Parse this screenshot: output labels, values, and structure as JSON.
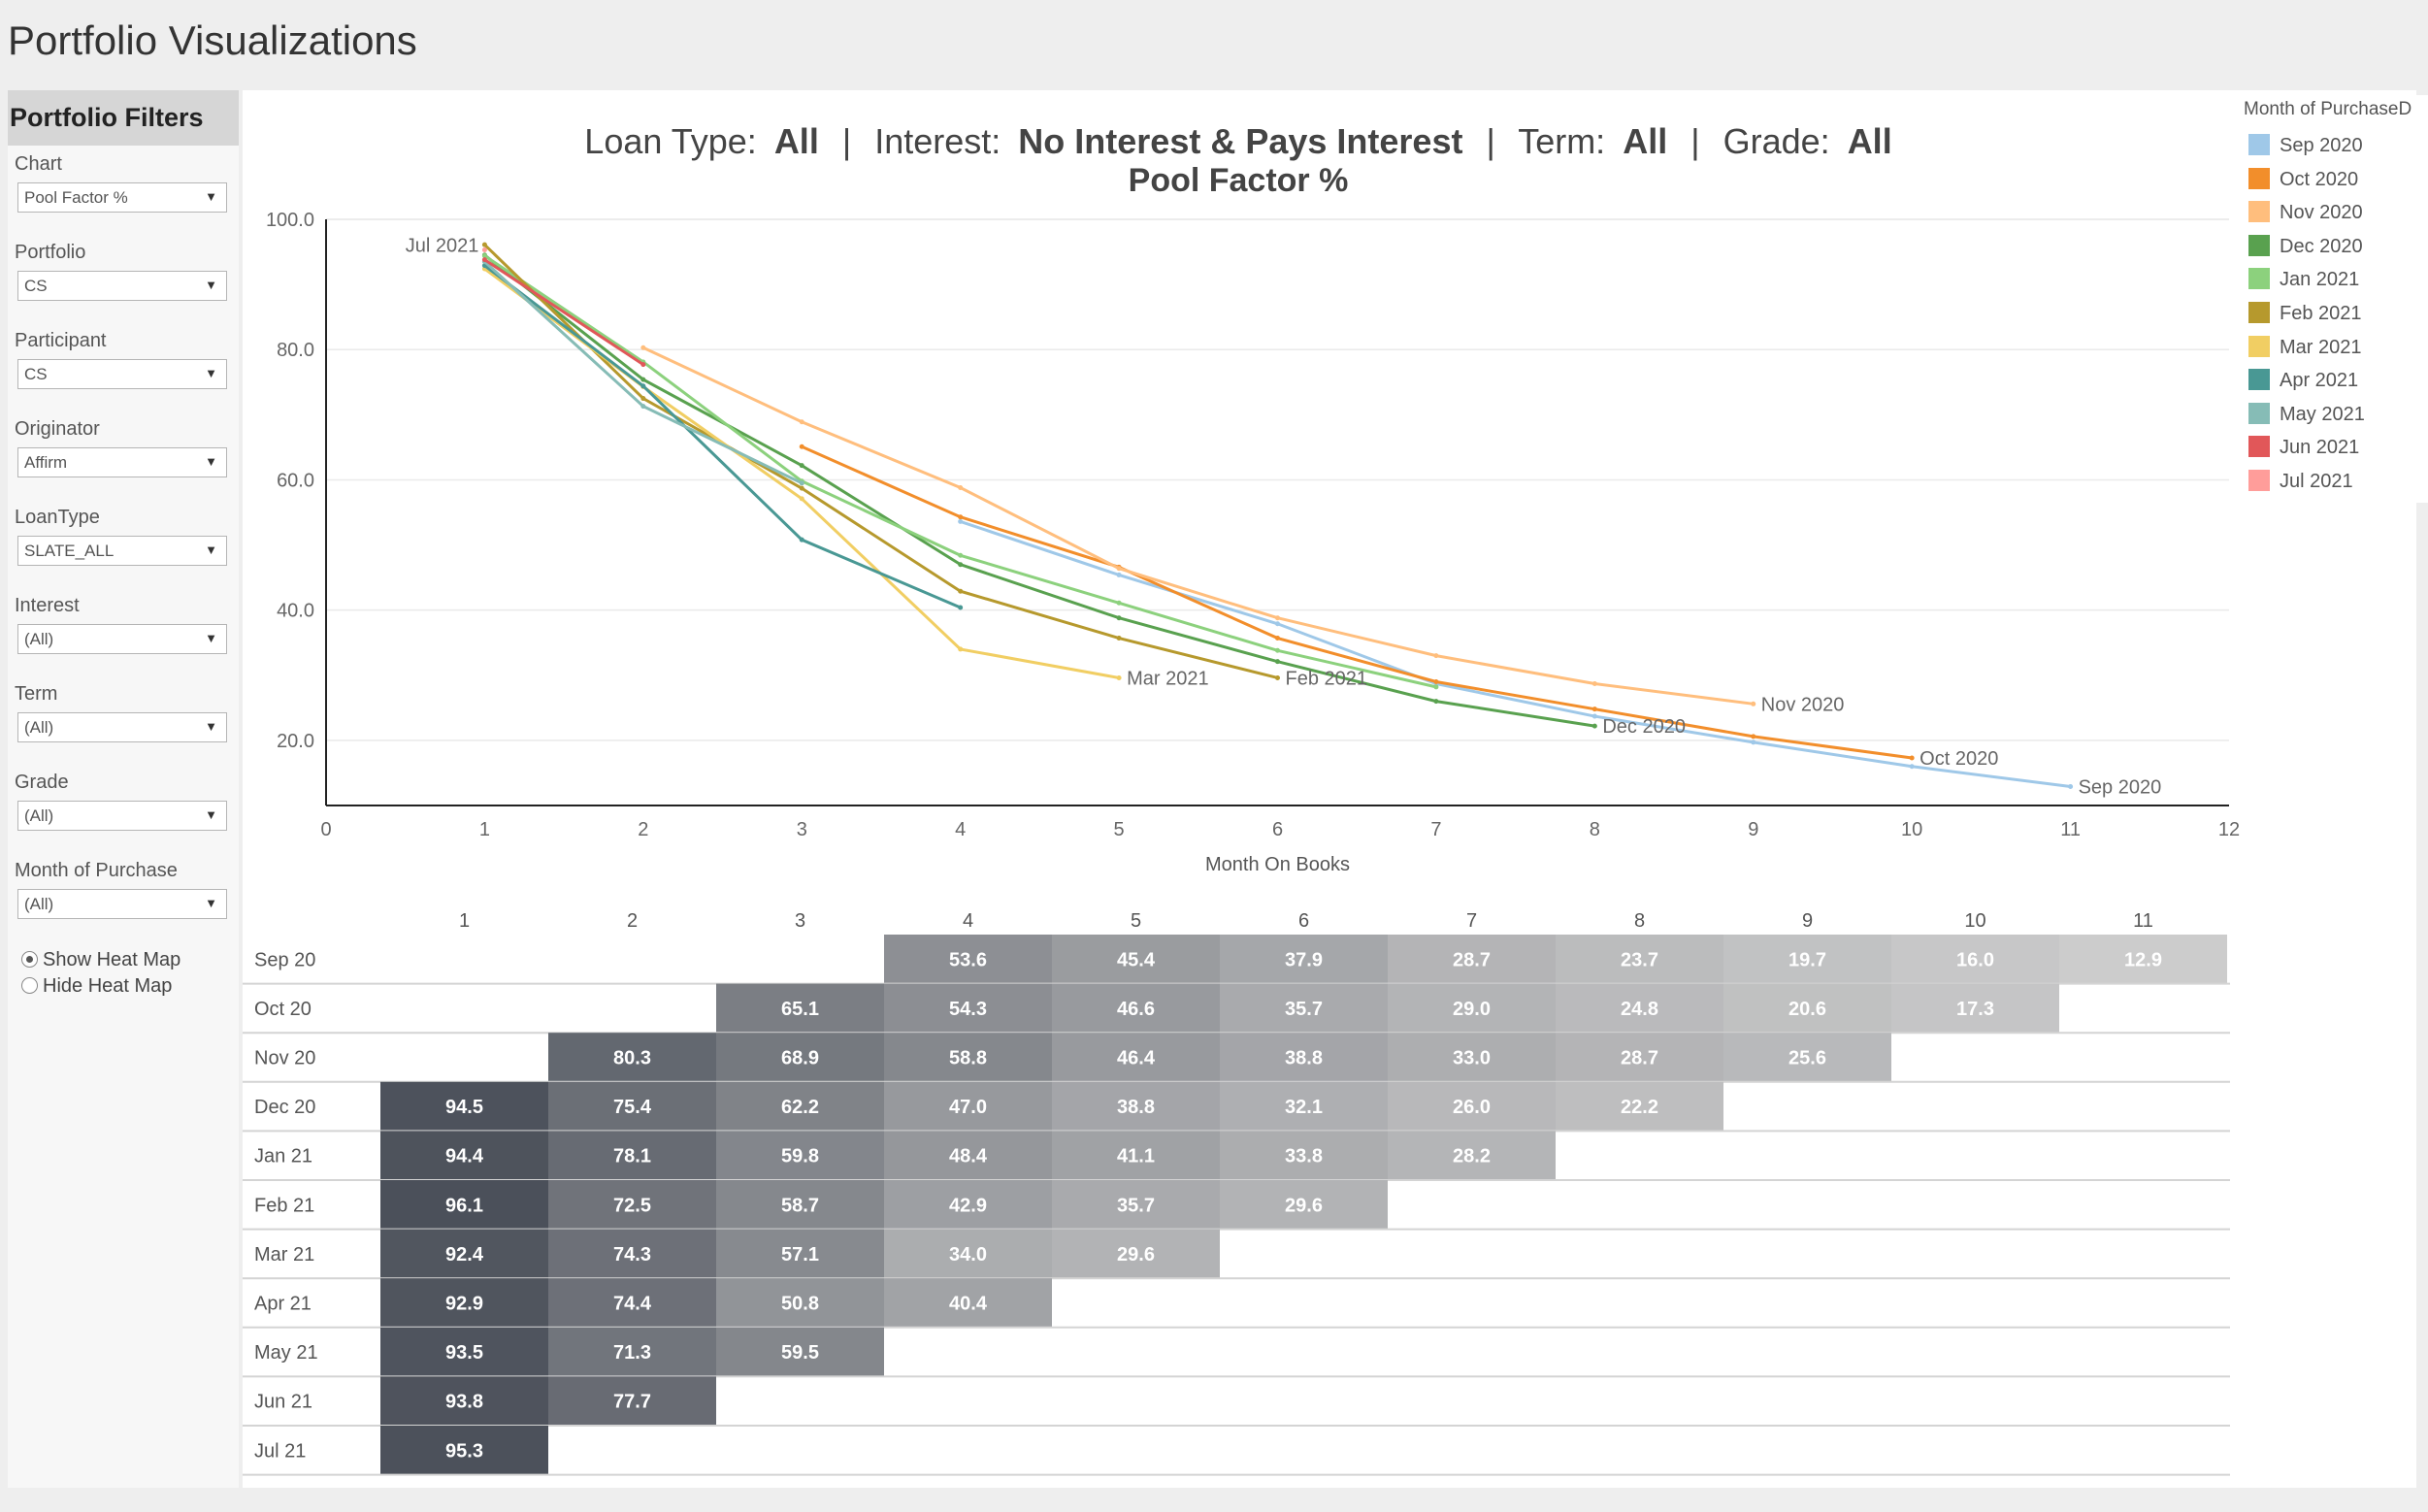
{
  "app": {
    "title": "Portfolio Visualizations"
  },
  "sidebar": {
    "header": "Portfolio Filters",
    "filters": [
      {
        "label": "Chart",
        "value": "Pool Factor %"
      },
      {
        "label": "Portfolio",
        "value": "CS"
      },
      {
        "label": "Participant",
        "value": "CS"
      },
      {
        "label": "Originator",
        "value": "Affirm"
      },
      {
        "label": "LoanType",
        "value": "SLATE_ALL"
      },
      {
        "label": "Interest",
        "value": "(All)"
      },
      {
        "label": "Term",
        "value": "(All)"
      },
      {
        "label": "Grade",
        "value": "(All)"
      },
      {
        "label": "Month of Purchase",
        "value": "(All)"
      }
    ],
    "heatmap_options": [
      {
        "label": "Show Heat Map",
        "selected": true
      },
      {
        "label": "Hide Heat Map",
        "selected": false
      }
    ]
  },
  "header": {
    "loan_type_label": "Loan Type:",
    "loan_type_value": "All",
    "interest_label": "Interest:",
    "interest_value": "No Interest & Pays Interest",
    "term_label": "Term:",
    "term_value": "All",
    "grade_label": "Grade:",
    "grade_value": "All",
    "separator": "|"
  },
  "legend": {
    "title": "Month of PurchaseD",
    "items": [
      {
        "label": "Sep 2020",
        "color": "#9fc8e8"
      },
      {
        "label": "Oct 2020",
        "color": "#f28e2b"
      },
      {
        "label": "Nov 2020",
        "color": "#ffbe7d"
      },
      {
        "label": "Dec 2020",
        "color": "#59a14f"
      },
      {
        "label": "Jan 2021",
        "color": "#8cd17d"
      },
      {
        "label": "Feb 2021",
        "color": "#b6992d"
      },
      {
        "label": "Mar 2021",
        "color": "#f1ce63"
      },
      {
        "label": "Apr 2021",
        "color": "#499894"
      },
      {
        "label": "May 2021",
        "color": "#86bcb6"
      },
      {
        "label": "Jun 2021",
        "color": "#e15759"
      },
      {
        "label": "Jul 2021",
        "color": "#ff9d9a"
      }
    ]
  },
  "chart_data": [
    {
      "type": "line",
      "title": "Pool Factor %",
      "xlabel": "Month On Books",
      "ylabel": "",
      "xlim": [
        0,
        12
      ],
      "ylim": [
        10,
        100
      ],
      "x_ticks": [
        0,
        1,
        2,
        3,
        4,
        5,
        6,
        7,
        8,
        9,
        10,
        11,
        12
      ],
      "y_ticks": [
        20,
        40,
        60,
        80,
        100
      ],
      "y_tick_labels": [
        "20.0",
        "40.0",
        "60.0",
        "80.0",
        "100.0"
      ],
      "grid": true,
      "legend": "right",
      "series": [
        {
          "name": "Sep 2020",
          "color": "#9fc8e8",
          "x": [
            4,
            5,
            6,
            7,
            8,
            9,
            10,
            11
          ],
          "values": [
            53.6,
            45.4,
            37.9,
            28.7,
            23.7,
            19.7,
            16.0,
            12.9
          ],
          "end_label": "Sep 2020"
        },
        {
          "name": "Oct 2020",
          "color": "#f28e2b",
          "x": [
            3,
            4,
            5,
            6,
            7,
            8,
            9,
            10
          ],
          "values": [
            65.1,
            54.3,
            46.6,
            35.7,
            29.0,
            24.8,
            20.6,
            17.3
          ],
          "end_label": "Oct 2020"
        },
        {
          "name": "Nov 2020",
          "color": "#ffbe7d",
          "x": [
            2,
            3,
            4,
            5,
            6,
            7,
            8,
            9
          ],
          "values": [
            80.3,
            68.9,
            58.8,
            46.4,
            38.8,
            33.0,
            28.7,
            25.6
          ],
          "end_label": "Nov 2020"
        },
        {
          "name": "Dec 2020",
          "color": "#59a14f",
          "x": [
            1,
            2,
            3,
            4,
            5,
            6,
            7,
            8
          ],
          "values": [
            94.5,
            75.4,
            62.2,
            47.0,
            38.8,
            32.1,
            26.0,
            22.2
          ],
          "end_label": "Dec 2020"
        },
        {
          "name": "Jan 2021",
          "color": "#8cd17d",
          "x": [
            1,
            2,
            3,
            4,
            5,
            6,
            7
          ],
          "values": [
            94.4,
            78.1,
            59.8,
            48.4,
            41.1,
            33.8,
            28.2
          ],
          "end_label": ""
        },
        {
          "name": "Feb 2021",
          "color": "#b6992d",
          "x": [
            1,
            2,
            3,
            4,
            5,
            6
          ],
          "values": [
            96.1,
            72.5,
            58.7,
            42.9,
            35.7,
            29.6
          ],
          "end_label": "Feb 2021"
        },
        {
          "name": "Mar 2021",
          "color": "#f1ce63",
          "x": [
            1,
            2,
            3,
            4,
            5
          ],
          "values": [
            92.4,
            74.3,
            57.1,
            34.0,
            29.6
          ],
          "end_label": "Mar 2021"
        },
        {
          "name": "Apr 2021",
          "color": "#499894",
          "x": [
            1,
            2,
            3,
            4
          ],
          "values": [
            92.9,
            74.4,
            50.8,
            40.4
          ],
          "end_label": ""
        },
        {
          "name": "May 2021",
          "color": "#86bcb6",
          "x": [
            1,
            2,
            3
          ],
          "values": [
            93.5,
            71.3,
            59.5
          ],
          "end_label": ""
        },
        {
          "name": "Jun 2021",
          "color": "#e15759",
          "x": [
            1,
            2
          ],
          "values": [
            93.8,
            77.7
          ],
          "end_label": ""
        },
        {
          "name": "Jul 2021",
          "color": "#ff9d9a",
          "x": [
            1
          ],
          "values": [
            95.3
          ],
          "end_label": "Jul 2021"
        }
      ]
    },
    {
      "type": "heatmap",
      "columns": [
        1,
        2,
        3,
        4,
        5,
        6,
        7,
        8,
        9,
        10,
        11
      ],
      "rows": [
        "Sep 20",
        "Oct 20",
        "Nov 20",
        "Dec 20",
        "Jan 21",
        "Feb 21",
        "Mar 21",
        "Apr 21",
        "May 21",
        "Jun 21",
        "Jul 21"
      ],
      "values": [
        [
          null,
          null,
          null,
          53.6,
          45.4,
          37.9,
          28.7,
          23.7,
          19.7,
          16.0,
          12.9
        ],
        [
          null,
          null,
          65.1,
          54.3,
          46.6,
          35.7,
          29.0,
          24.8,
          20.6,
          17.3,
          null
        ],
        [
          null,
          80.3,
          68.9,
          58.8,
          46.4,
          38.8,
          33.0,
          28.7,
          25.6,
          null,
          null
        ],
        [
          94.5,
          75.4,
          62.2,
          47.0,
          38.8,
          32.1,
          26.0,
          22.2,
          null,
          null,
          null
        ],
        [
          94.4,
          78.1,
          59.8,
          48.4,
          41.1,
          33.8,
          28.2,
          null,
          null,
          null,
          null
        ],
        [
          96.1,
          72.5,
          58.7,
          42.9,
          35.7,
          29.6,
          null,
          null,
          null,
          null,
          null
        ],
        [
          92.4,
          74.3,
          57.1,
          34.0,
          29.6,
          null,
          null,
          null,
          null,
          null,
          null
        ],
        [
          92.9,
          74.4,
          50.8,
          40.4,
          null,
          null,
          null,
          null,
          null,
          null,
          null
        ],
        [
          93.5,
          71.3,
          59.5,
          null,
          null,
          null,
          null,
          null,
          null,
          null,
          null
        ],
        [
          93.8,
          77.7,
          null,
          null,
          null,
          null,
          null,
          null,
          null,
          null,
          null
        ],
        [
          95.3,
          null,
          null,
          null,
          null,
          null,
          null,
          null,
          null,
          null,
          null
        ]
      ]
    }
  ]
}
